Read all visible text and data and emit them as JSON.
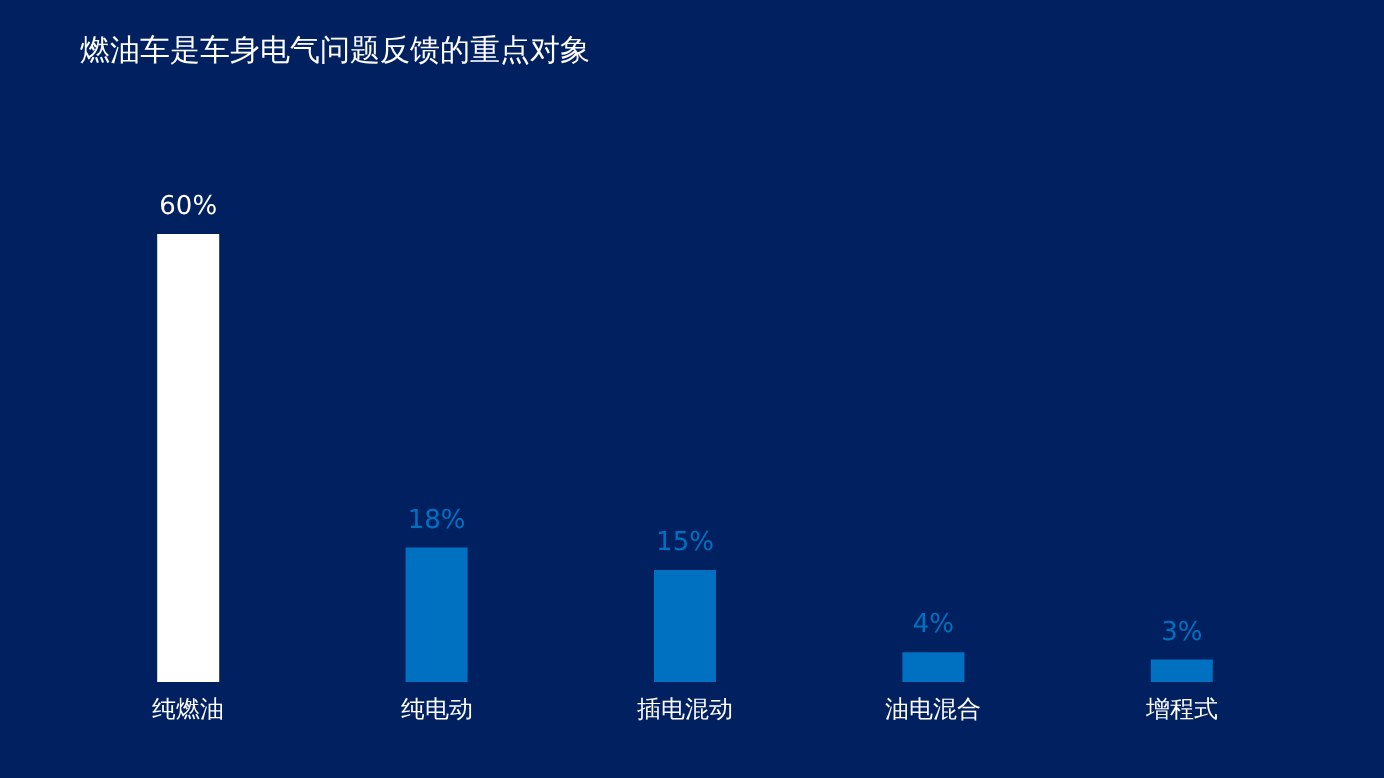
{
  "chart_data": {
    "type": "bar",
    "title": "燃油车是车身电气问题反馈的重点对象",
    "categories": [
      "纯燃油",
      "纯电动",
      "插电混动",
      "油电混合",
      "增程式"
    ],
    "values": [
      60,
      18,
      15,
      4,
      3
    ],
    "colors": [
      "#ffffff",
      "#0070c0",
      "#0070c0",
      "#0070c0",
      "#0070c0"
    ],
    "value_labels": [
      "60%",
      "18%",
      "15%",
      "4%",
      "3%"
    ],
    "grid": false,
    "tick_labels": "x"
  }
}
